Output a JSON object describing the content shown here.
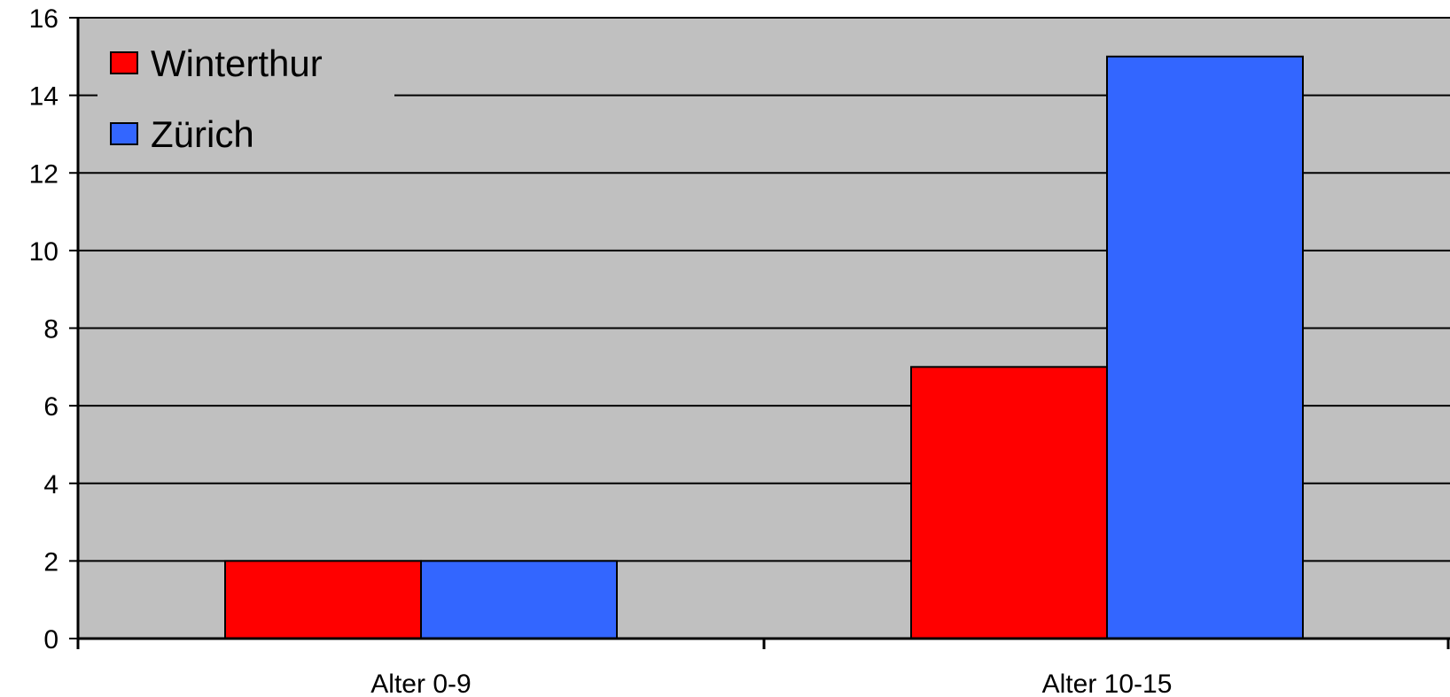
{
  "chart_data": {
    "type": "bar",
    "categories": [
      "Alter 0-9",
      "Alter 10-15"
    ],
    "series": [
      {
        "name": "Winterthur",
        "values": [
          2,
          7
        ],
        "color": "#ff0000"
      },
      {
        "name": "Zürich",
        "values": [
          2,
          15
        ],
        "color": "#3366ff"
      }
    ],
    "ylim": [
      0,
      16
    ],
    "yticks": [
      "0",
      "2",
      "4",
      "6",
      "8",
      "10",
      "12",
      "14",
      "16"
    ],
    "grid": true,
    "legend_position": "top-left",
    "plot_background": "#c0c0c0"
  }
}
